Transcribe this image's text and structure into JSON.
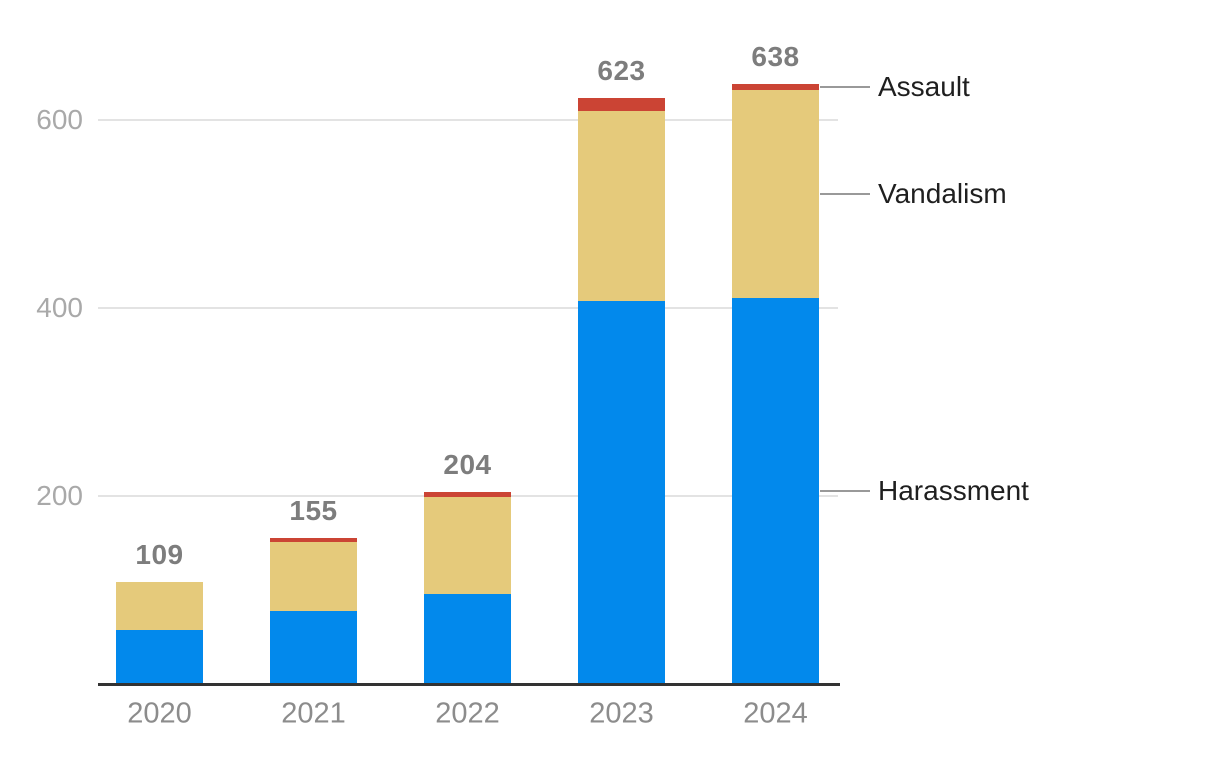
{
  "chart_data": {
    "type": "bar",
    "stacked": true,
    "title": "",
    "xlabel": "",
    "ylabel": "",
    "categories": [
      "2020",
      "2021",
      "2022",
      "2023",
      "2024"
    ],
    "series": [
      {
        "name": "Harassment",
        "color": "#0289ec",
        "values": [
          57,
          78,
          96,
          407,
          411
        ]
      },
      {
        "name": "Vandalism",
        "color": "#e5ca7b",
        "values": [
          52,
          73,
          103,
          203,
          221
        ]
      },
      {
        "name": "Assault",
        "color": "#cb4434",
        "values": [
          0,
          4,
          5,
          13,
          6
        ]
      }
    ],
    "totals": [
      109,
      155,
      204,
      623,
      638
    ],
    "y_ticks": [
      200,
      400,
      600
    ],
    "ylim": [
      0,
      680
    ],
    "grid": "horizontal",
    "legend_position": "right-annotations",
    "annotations": [
      {
        "label": "Assault",
        "series": "Assault"
      },
      {
        "label": "Vandalism",
        "series": "Vandalism"
      },
      {
        "label": "Harassment",
        "series": "Harassment"
      }
    ]
  },
  "colors": {
    "harassment": "#0289ec",
    "vandalism": "#e5ca7b",
    "assault": "#cb4434",
    "axis": "#333333",
    "gridline": "#e3e3e3",
    "y_label": "#a9a9a9",
    "x_label": "#8c8c8c",
    "total_label": "#7d7d7d",
    "annotation_text": "#1f1f1f",
    "leader_line": "#999999"
  }
}
